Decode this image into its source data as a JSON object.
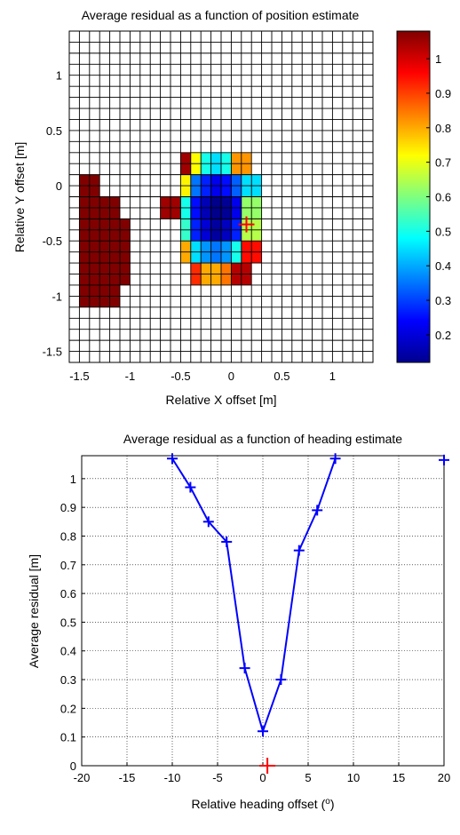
{
  "chart_data": [
    {
      "type": "heatmap",
      "title": "Average residual as a function of position estimate",
      "xlabel": "Relative X offset [m]",
      "ylabel": "Relative Y offset [m]",
      "xlim": [
        -1.6,
        1.4
      ],
      "ylim": [
        -1.6,
        1.4
      ],
      "xticks": [
        -1.5,
        -1,
        -0.5,
        0,
        0.5,
        1
      ],
      "xtick_labels": [
        "-1.5",
        "-1",
        "-0.5",
        "0",
        "0.5",
        "1"
      ],
      "yticks": [
        -1.5,
        -1,
        -0.5,
        0,
        0.5,
        1
      ],
      "ytick_labels": [
        "-1.5",
        "-1",
        "-0.5",
        "0",
        "0.5",
        "1"
      ],
      "cell_size": 0.1,
      "grid": true,
      "colorbar": {
        "range": [
          0.12,
          1.08
        ],
        "ticks": [
          0.2,
          0.3,
          0.4,
          0.5,
          0.6,
          0.7,
          0.8,
          0.9,
          1
        ],
        "tick_labels": [
          "0.2",
          "0.3",
          "0.4",
          "0.5",
          "0.6",
          "0.7",
          "0.8",
          "0.9",
          "1"
        ],
        "colormap": "jet"
      },
      "cells": [
        {
          "x": -1.5,
          "y": -0.1,
          "v": 1.08
        },
        {
          "x": -1.5,
          "y": -0.2,
          "v": 1.08
        },
        {
          "x": -1.5,
          "y": -0.3,
          "v": 1.08
        },
        {
          "x": -1.5,
          "y": -0.4,
          "v": 1.08
        },
        {
          "x": -1.5,
          "y": -0.5,
          "v": 1.08
        },
        {
          "x": -1.5,
          "y": -0.6,
          "v": 1.08
        },
        {
          "x": -1.5,
          "y": -0.7,
          "v": 1.08
        },
        {
          "x": -1.5,
          "y": -0.8,
          "v": 1.08
        },
        {
          "x": -1.5,
          "y": -0.9,
          "v": 1.08
        },
        {
          "x": -1.5,
          "y": -1.0,
          "v": 1.08
        },
        {
          "x": -1.5,
          "y": -1.1,
          "v": 1.08
        },
        {
          "x": -1.4,
          "y": -0.3,
          "v": 1.08
        },
        {
          "x": -1.4,
          "y": -0.4,
          "v": 1.08
        },
        {
          "x": -1.4,
          "y": -0.5,
          "v": 1.08
        },
        {
          "x": -1.4,
          "y": -0.6,
          "v": 1.08
        },
        {
          "x": -1.4,
          "y": -0.7,
          "v": 1.08
        },
        {
          "x": -1.4,
          "y": -0.8,
          "v": 1.08
        },
        {
          "x": -1.4,
          "y": -0.9,
          "v": 1.08
        },
        {
          "x": -1.4,
          "y": -1.0,
          "v": 1.08
        },
        {
          "x": -1.4,
          "y": -1.1,
          "v": 1.08
        },
        {
          "x": -1.3,
          "y": -0.3,
          "v": 1.08
        },
        {
          "x": -1.3,
          "y": -0.4,
          "v": 1.08
        },
        {
          "x": -1.3,
          "y": -0.5,
          "v": 1.08
        },
        {
          "x": -1.3,
          "y": -0.6,
          "v": 1.08
        },
        {
          "x": -1.3,
          "y": -0.7,
          "v": 1.08
        },
        {
          "x": -1.3,
          "y": -0.8,
          "v": 1.08
        },
        {
          "x": -1.3,
          "y": -0.9,
          "v": 1.08
        },
        {
          "x": -1.3,
          "y": -1.0,
          "v": 1.08
        },
        {
          "x": -1.3,
          "y": -1.1,
          "v": 1.08
        },
        {
          "x": -1.2,
          "y": -0.5,
          "v": 1.08
        },
        {
          "x": -1.2,
          "y": -0.6,
          "v": 1.08
        },
        {
          "x": -1.2,
          "y": -0.7,
          "v": 1.08
        },
        {
          "x": -1.2,
          "y": -0.8,
          "v": 1.08
        },
        {
          "x": -1.2,
          "y": -0.9,
          "v": 1.08
        },
        {
          "x": -0.7,
          "y": -0.3,
          "v": 1.05
        },
        {
          "x": -0.5,
          "y": 0.1,
          "v": 1.05
        },
        {
          "x": -0.4,
          "y": 0.1,
          "v": 0.72
        },
        {
          "x": -0.3,
          "y": 0.1,
          "v": 0.5
        },
        {
          "x": -0.2,
          "y": 0.1,
          "v": 0.45
        },
        {
          "x": -0.1,
          "y": 0.1,
          "v": 0.5
        },
        {
          "x": 0.0,
          "y": 0.1,
          "v": 0.82
        },
        {
          "x": -0.5,
          "y": -0.1,
          "v": 0.73
        },
        {
          "x": -0.4,
          "y": -0.1,
          "v": 0.35
        },
        {
          "x": -0.3,
          "y": -0.1,
          "v": 0.27
        },
        {
          "x": -0.2,
          "y": -0.1,
          "v": 0.22
        },
        {
          "x": -0.1,
          "y": -0.1,
          "v": 0.25
        },
        {
          "x": 0.0,
          "y": -0.1,
          "v": 0.33
        },
        {
          "x": 0.1,
          "y": -0.1,
          "v": 0.45
        },
        {
          "x": -0.5,
          "y": -0.3,
          "v": 0.5
        },
        {
          "x": -0.4,
          "y": -0.3,
          "v": 0.25
        },
        {
          "x": -0.3,
          "y": -0.3,
          "v": 0.17
        },
        {
          "x": -0.2,
          "y": -0.3,
          "v": 0.13
        },
        {
          "x": -0.1,
          "y": -0.3,
          "v": 0.14
        },
        {
          "x": 0.0,
          "y": -0.3,
          "v": 0.22
        },
        {
          "x": 0.1,
          "y": -0.3,
          "v": 0.62
        },
        {
          "x": -0.5,
          "y": -0.5,
          "v": 0.53
        },
        {
          "x": -0.4,
          "y": -0.5,
          "v": 0.27
        },
        {
          "x": -0.3,
          "y": -0.5,
          "v": 0.2
        },
        {
          "x": -0.2,
          "y": -0.5,
          "v": 0.15
        },
        {
          "x": -0.1,
          "y": -0.5,
          "v": 0.18
        },
        {
          "x": 0.0,
          "y": -0.5,
          "v": 0.27
        },
        {
          "x": 0.1,
          "y": -0.5,
          "v": 0.65
        },
        {
          "x": -0.5,
          "y": -0.7,
          "v": 0.8
        },
        {
          "x": -0.4,
          "y": -0.7,
          "v": 0.45
        },
        {
          "x": -0.3,
          "y": -0.7,
          "v": 0.38
        },
        {
          "x": -0.2,
          "y": -0.7,
          "v": 0.35
        },
        {
          "x": -0.1,
          "y": -0.7,
          "v": 0.38
        },
        {
          "x": 0.0,
          "y": -0.7,
          "v": 0.5
        },
        {
          "x": 0.1,
          "y": -0.7,
          "v": 0.95
        },
        {
          "x": -0.4,
          "y": -0.9,
          "v": 0.92
        },
        {
          "x": -0.3,
          "y": -0.9,
          "v": 0.8
        },
        {
          "x": -0.2,
          "y": -0.9,
          "v": 0.8
        },
        {
          "x": -0.1,
          "y": -0.9,
          "v": 0.85
        },
        {
          "x": 0.0,
          "y": -0.9,
          "v": 1.03
        }
      ],
      "estimate_marker": {
        "x": 0.1,
        "y": -0.4,
        "color": "#ff0000"
      }
    },
    {
      "type": "line",
      "title": "Average residual as a function of heading estimate",
      "xlabel": "Relative heading offset (",
      "xlabel_sup": "o",
      "xlabel_end": ")",
      "ylabel": "Average residual [m]",
      "xlim": [
        -20,
        20
      ],
      "ylim": [
        0,
        1.08
      ],
      "xticks": [
        -20,
        -15,
        -10,
        -5,
        0,
        5,
        10,
        15,
        20
      ],
      "xtick_labels": [
        "-20",
        "-15",
        "-10",
        "-5",
        "0",
        "5",
        "10",
        "15",
        "20"
      ],
      "yticks": [
        0,
        0.1,
        0.2,
        0.3,
        0.4,
        0.5,
        0.6,
        0.7,
        0.8,
        0.9,
        1
      ],
      "ytick_labels": [
        "0",
        "0.1",
        "0.2",
        "0.3",
        "0.4",
        "0.5",
        "0.6",
        "0.7",
        "0.8",
        "0.9",
        "1"
      ],
      "grid": true,
      "series": [
        {
          "color": "#0000ff",
          "x": [
            -10,
            -8,
            -6,
            -4,
            -2,
            0,
            2,
            4,
            6,
            8
          ],
          "y": [
            1.07,
            0.97,
            0.85,
            0.78,
            0.34,
            0.12,
            0.3,
            0.75,
            0.89,
            1.07
          ]
        }
      ],
      "extra_points": [
        {
          "x": 20,
          "y": 1.065,
          "color": "#0000ff"
        }
      ],
      "estimate_marker": {
        "x": 0.5,
        "y": 0,
        "color": "#ff0000"
      }
    }
  ]
}
